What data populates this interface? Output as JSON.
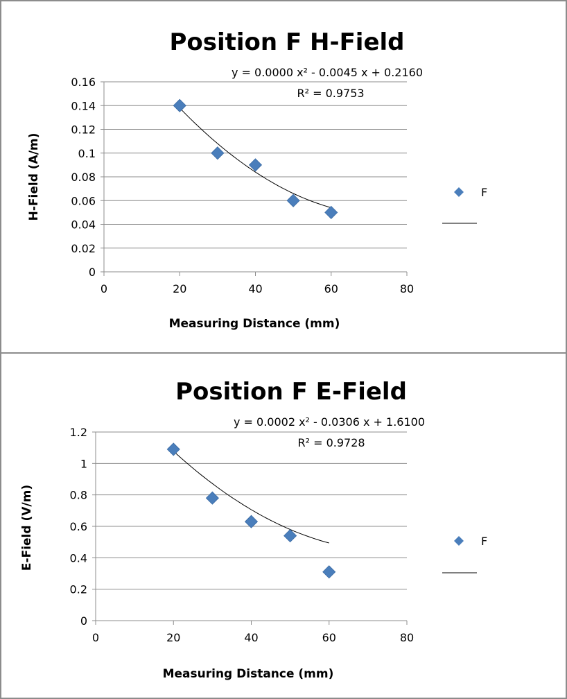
{
  "chart_data": [
    {
      "type": "scatter",
      "title": "Position F H-Field",
      "xlabel": "Measuring Distance (mm)",
      "ylabel": "H-Field (A/m)",
      "xlim": [
        0,
        80
      ],
      "ylim": [
        0,
        0.16
      ],
      "x_ticks": [
        "0",
        "20",
        "40",
        "60",
        "80"
      ],
      "y_ticks": [
        "0",
        "0.02",
        "0.04",
        "0.06",
        "0.08",
        "0.1",
        "0.12",
        "0.14",
        "0.16"
      ],
      "grid": "horizontal",
      "legend_position": "right",
      "series": [
        {
          "name": "F",
          "x": [
            20,
            30,
            40,
            50,
            60
          ],
          "y": [
            0.14,
            0.1,
            0.09,
            0.06,
            0.05
          ],
          "color": "#4a7ebb"
        }
      ],
      "trendline": {
        "type": "polynomial",
        "equation": "y = 0.0000 x² - 0.0045 x + 0.2160",
        "r_squared": "R² = 0.9753",
        "coefficients": [
          3e-05,
          -0.0045,
          0.216
        ]
      }
    },
    {
      "type": "scatter",
      "title": "Position F E-Field",
      "xlabel": "Measuring Distance (mm)",
      "ylabel": "E-Field (V/m)",
      "xlim": [
        0,
        80
      ],
      "ylim": [
        0,
        1.2
      ],
      "x_ticks": [
        "0",
        "20",
        "40",
        "60",
        "80"
      ],
      "y_ticks": [
        "0",
        "0.2",
        "0.4",
        "0.6",
        "0.8",
        "1",
        "1.2"
      ],
      "grid": "horizontal",
      "legend_position": "right",
      "series": [
        {
          "name": "F",
          "x": [
            20,
            30,
            40,
            50,
            60
          ],
          "y": [
            1.09,
            0.78,
            0.63,
            0.54,
            0.31
          ],
          "color": "#4a7ebb"
        }
      ],
      "trendline": {
        "type": "polynomial",
        "equation": "y = 0.0002 x² - 0.0306 x + 1.6100",
        "r_squared": "R² = 0.9728",
        "coefficients": [
          0.0002,
          -0.0306,
          1.61
        ]
      }
    }
  ]
}
